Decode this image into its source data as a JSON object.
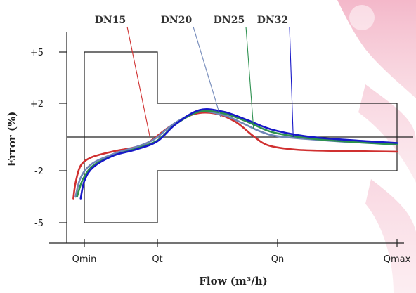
{
  "chart_data": {
    "type": "line",
    "title": "",
    "xlabel": "Flow (m³/h)",
    "ylabel": "Error (%)",
    "x_categories": [
      "Qmin",
      "Qt",
      "Qn",
      "Qmax"
    ],
    "y_ticks": [
      {
        "label": "+5",
        "value": 5
      },
      {
        "label": "+2",
        "value": 2
      },
      {
        "label": "-2",
        "value": -2
      },
      {
        "label": "-5",
        "value": -5
      }
    ],
    "y_range": [
      -6.2,
      6.2
    ],
    "x_range": [
      -0.5,
      4.5
    ],
    "grid": false,
    "legend": "top, labels with leader lines",
    "tolerance_envelope": [
      {
        "x": 0,
        "y": 5
      },
      {
        "x": 1,
        "y": 5
      },
      {
        "x": 1,
        "y": 2
      },
      {
        "x": 4.3,
        "y": 2
      },
      {
        "x": 4.3,
        "y": -2
      },
      {
        "x": 1,
        "y": -2
      },
      {
        "x": 1,
        "y": -5
      },
      {
        "x": 0,
        "y": -5
      }
    ],
    "zero_line": {
      "y": 0
    },
    "series": [
      {
        "name": "DN15",
        "color": "#d03030",
        "points": [
          [
            -0.15,
            -3.6
          ],
          [
            -0.12,
            -2.7
          ],
          [
            -0.05,
            -1.7
          ],
          [
            0.1,
            -1.2
          ],
          [
            0.4,
            -0.85
          ],
          [
            0.7,
            -0.6
          ],
          [
            0.9,
            -0.25
          ],
          [
            1.2,
            0.6
          ],
          [
            1.6,
            1.35
          ],
          [
            1.95,
            1.4
          ],
          [
            2.3,
            0.9
          ],
          [
            2.6,
            0.05
          ],
          [
            2.85,
            -0.5
          ],
          [
            3.2,
            -0.75
          ],
          [
            3.6,
            -0.82
          ],
          [
            4.0,
            -0.85
          ],
          [
            4.3,
            -0.87
          ]
        ],
        "legend_target": [
          0.9,
          -0.05
        ]
      },
      {
        "name": "DN20",
        "color": "#6f86b8",
        "points": [
          [
            -0.12,
            -3.5
          ],
          [
            -0.05,
            -2.4
          ],
          [
            0.1,
            -1.6
          ],
          [
            0.4,
            -1.0
          ],
          [
            0.7,
            -0.6
          ],
          [
            0.95,
            -0.15
          ],
          [
            1.3,
            0.85
          ],
          [
            1.7,
            1.5
          ],
          [
            2.1,
            1.3
          ],
          [
            2.4,
            0.85
          ],
          [
            2.7,
            0.35
          ],
          [
            3.0,
            0.05
          ],
          [
            3.4,
            -0.15
          ],
          [
            3.8,
            -0.3
          ],
          [
            4.3,
            -0.4
          ]
        ],
        "legend_target": [
          2.05,
          1.2
        ]
      },
      {
        "name": "DN25",
        "color": "#2e9150",
        "points": [
          [
            -0.1,
            -3.5
          ],
          [
            -0.02,
            -2.5
          ],
          [
            0.12,
            -1.7
          ],
          [
            0.4,
            -1.1
          ],
          [
            0.7,
            -0.7
          ],
          [
            1.0,
            -0.2
          ],
          [
            1.3,
            0.75
          ],
          [
            1.7,
            1.5
          ],
          [
            2.1,
            1.4
          ],
          [
            2.5,
            0.9
          ],
          [
            2.9,
            0.3
          ],
          [
            3.3,
            -0.05
          ],
          [
            3.7,
            -0.25
          ],
          [
            4.3,
            -0.45
          ]
        ],
        "legend_target": [
          2.6,
          0.5
        ]
      },
      {
        "name": "DN32",
        "color": "#1818c8",
        "points": [
          [
            -0.05,
            -3.6
          ],
          [
            0.0,
            -2.6
          ],
          [
            0.12,
            -1.8
          ],
          [
            0.4,
            -1.1
          ],
          [
            0.7,
            -0.75
          ],
          [
            1.0,
            -0.25
          ],
          [
            1.3,
            0.75
          ],
          [
            1.7,
            1.6
          ],
          [
            2.1,
            1.5
          ],
          [
            2.5,
            1.0
          ],
          [
            2.9,
            0.45
          ],
          [
            3.3,
            0.05
          ],
          [
            3.7,
            -0.15
          ],
          [
            4.3,
            -0.35
          ]
        ],
        "legend_target": [
          3.17,
          0.0
        ]
      }
    ]
  }
}
